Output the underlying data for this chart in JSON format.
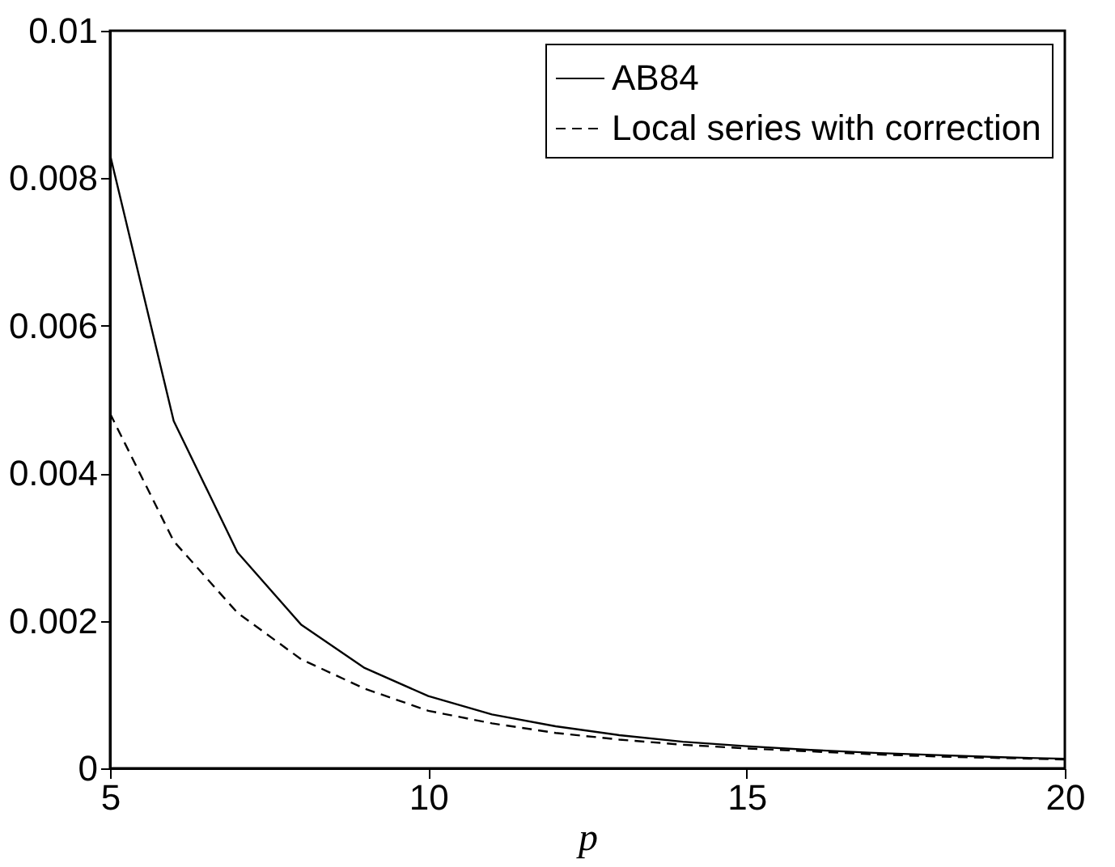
{
  "chart_data": {
    "type": "line",
    "xlabel": "p",
    "x": [
      5,
      6,
      7,
      8,
      9,
      10,
      11,
      12,
      13,
      14,
      15,
      16,
      17,
      18,
      19,
      20
    ],
    "series": [
      {
        "name": "AB84",
        "color": "#000000",
        "line_style": "solid",
        "values": [
          0.00832,
          0.00471,
          0.00293,
          0.00195,
          0.00136,
          0.00098,
          0.00073,
          0.00057,
          0.00045,
          0.00036,
          0.0003,
          0.00025,
          0.00021,
          0.00018,
          0.00015,
          0.00013
        ]
      },
      {
        "name": "Local series with correction",
        "color": "#000000",
        "line_style": "dashed",
        "values": [
          0.00481,
          0.00308,
          0.00211,
          0.00148,
          0.00108,
          0.00078,
          0.00061,
          0.00048,
          0.00039,
          0.00032,
          0.00027,
          0.00023,
          0.00019,
          0.00016,
          0.00014,
          0.00012
        ]
      }
    ],
    "xlim": [
      5,
      20
    ],
    "xticks": [
      5,
      10,
      15,
      20
    ],
    "ylim": [
      0,
      0.01
    ],
    "yticks": [
      0,
      0.002,
      0.004,
      0.006,
      0.008,
      0.01
    ],
    "grid": false,
    "legend": "top right",
    "marker": "none"
  }
}
